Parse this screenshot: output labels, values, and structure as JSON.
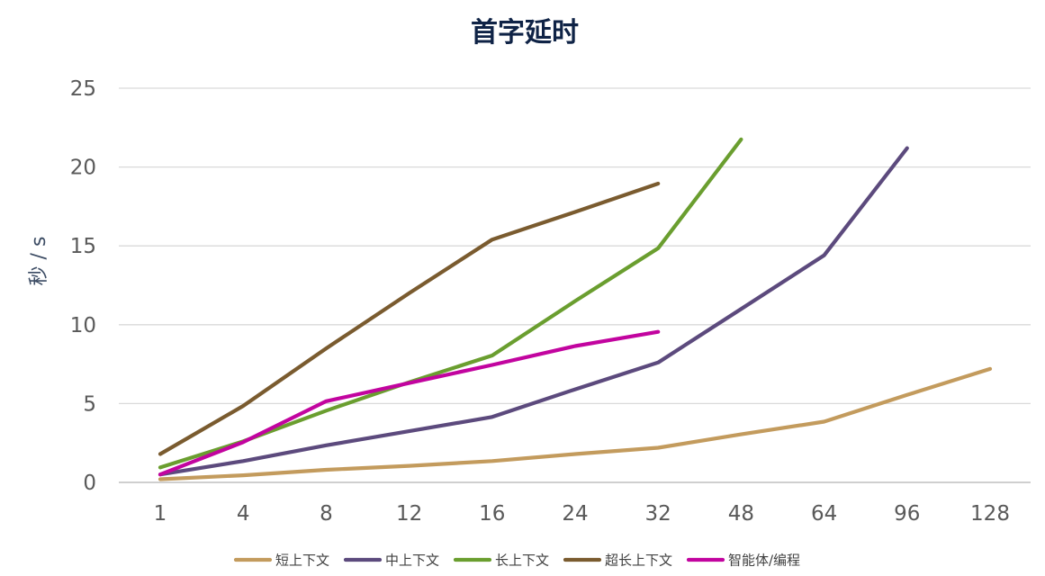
{
  "chart_data": {
    "type": "line",
    "title": "首字延时",
    "xlabel": "",
    "ylabel": "秒 / s",
    "ylim": [
      0,
      25
    ],
    "yticks": [
      "0",
      "5",
      "10",
      "15",
      "20",
      "25"
    ],
    "categories": [
      "1",
      "4",
      "8",
      "12",
      "16",
      "24",
      "32",
      "48",
      "64",
      "96",
      "128"
    ],
    "grid": "horizontal",
    "legend_position": "bottom",
    "series": [
      {
        "name": "短上下文",
        "color": "#c39b5d",
        "values": [
          0.2,
          0.45,
          0.8,
          1.05,
          1.35,
          1.8,
          2.2,
          3.05,
          3.85,
          5.55,
          7.2
        ]
      },
      {
        "name": "中上下文",
        "color": "#5c4a7d",
        "values": [
          0.5,
          1.35,
          2.35,
          3.25,
          4.15,
          5.9,
          7.6,
          11.0,
          14.4,
          21.2,
          null
        ]
      },
      {
        "name": "长上下文",
        "color": "#6a9e2f",
        "values": [
          0.95,
          2.6,
          4.55,
          6.35,
          8.05,
          11.5,
          14.85,
          21.75,
          null,
          null,
          null
        ]
      },
      {
        "name": "超长上下文",
        "color": "#7a5b2f",
        "values": [
          1.8,
          4.85,
          8.5,
          12.0,
          15.4,
          17.15,
          18.95,
          null,
          null,
          null,
          null
        ]
      },
      {
        "name": "智能体/编程",
        "color": "#c2049f",
        "values": [
          0.5,
          2.55,
          5.15,
          6.3,
          7.45,
          8.65,
          9.55,
          null,
          null,
          null,
          null
        ]
      }
    ]
  }
}
